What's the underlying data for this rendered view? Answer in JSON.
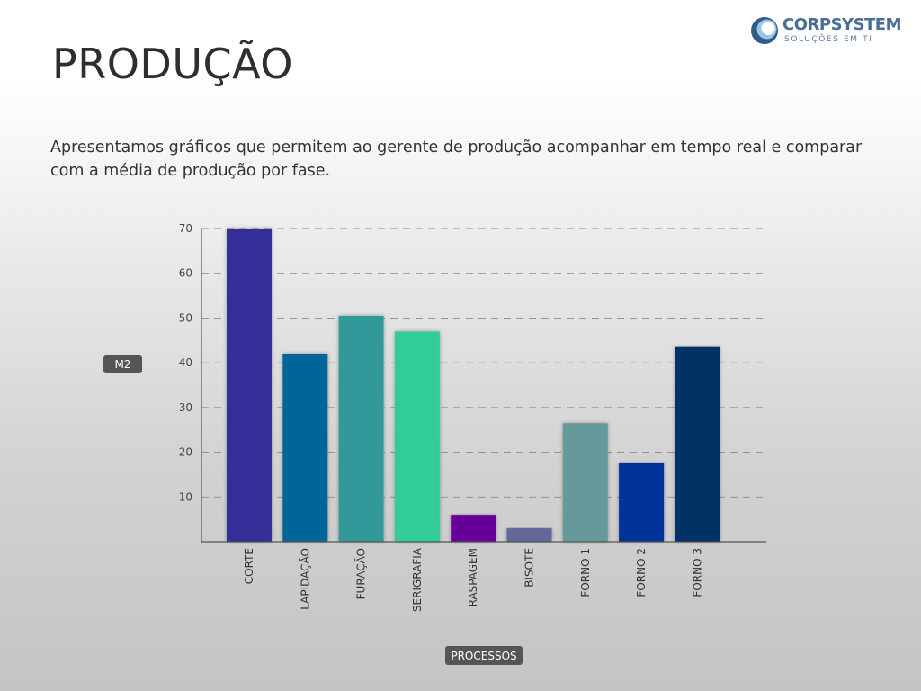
{
  "header": {
    "title": "PRODUÇÃO",
    "intro": "Apresentamos gráficos que permitem ao gerente de produção acompanhar em tempo real e comparar com a média de produção por fase."
  },
  "logo": {
    "name": "CORPSYSTEM",
    "tagline": "SOLUÇÕES EM TI",
    "icon": "swirl-logo-icon"
  },
  "chart_data": {
    "type": "bar",
    "title": "",
    "xlabel": "PROCESSOS",
    "ylabel": "M2",
    "ylim": [
      0,
      70
    ],
    "yticks": [
      "10",
      "20",
      "30",
      "40",
      "50",
      "60",
      "70"
    ],
    "grid": true,
    "categories": [
      "CORTE",
      "LAPIDAÇÃO",
      "FURAÇÃO",
      "SERIGRAFIA",
      "RASPAGEM",
      "BISOTE",
      "FORNO 1",
      "FORNO 2",
      "FORNO 3"
    ],
    "values": [
      70,
      42,
      50.5,
      47,
      6,
      3,
      26.5,
      17.5,
      43.5
    ],
    "colors": [
      "#352f98",
      "#006699",
      "#33999a",
      "#33cc99",
      "#660099",
      "#666699",
      "#669999",
      "#003399",
      "#003366"
    ]
  }
}
